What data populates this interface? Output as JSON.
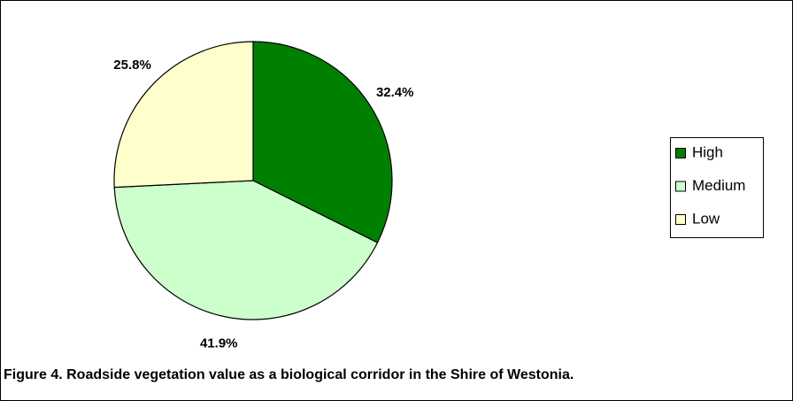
{
  "chart_data": {
    "type": "pie",
    "caption": "Figure 4. Roadside vegetation value as a biological corridor in the Shire of Westonia.",
    "categories": [
      "High",
      "Medium",
      "Low"
    ],
    "values": [
      32.4,
      41.9,
      25.8
    ],
    "value_labels": [
      "32.4%",
      "41.9%",
      "25.8%"
    ],
    "colors": [
      "#008000",
      "#ccffcc",
      "#ffffcc"
    ],
    "legend": "right"
  }
}
